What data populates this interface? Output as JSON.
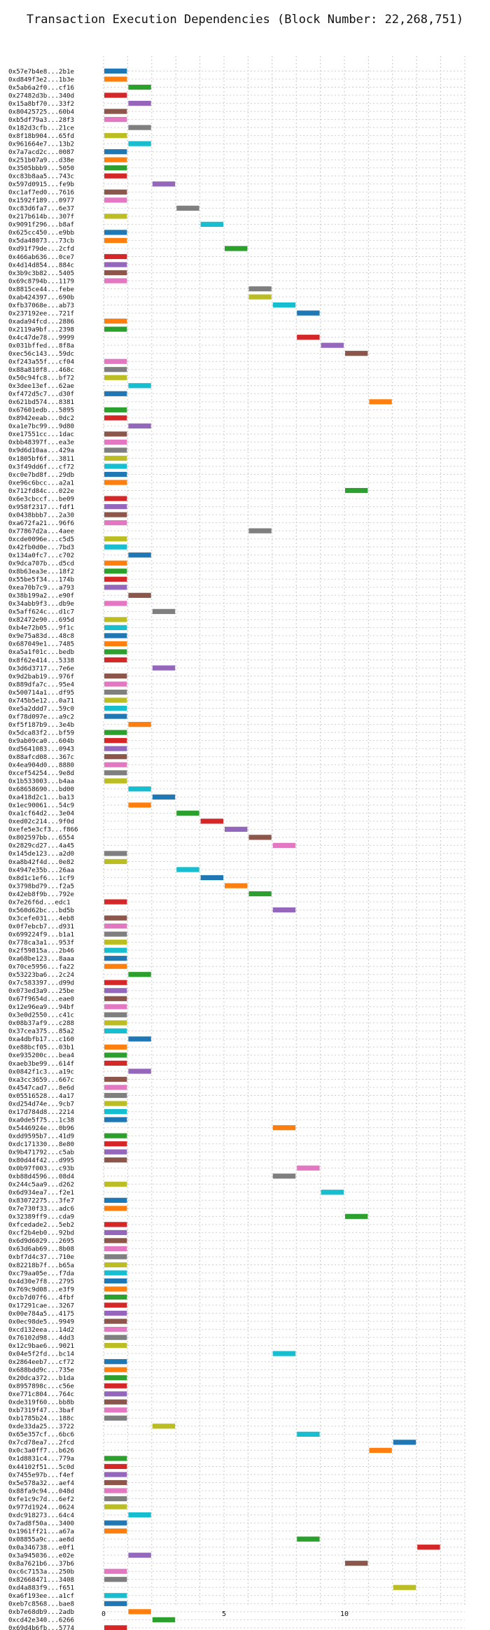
{
  "chart_data": {
    "type": "bar",
    "orientation": "horizontal-gantt",
    "title": "Transaction Execution Dependencies (Block Number: 22,268,751)",
    "xlabel": "",
    "ylabel": "",
    "xlim": [
      0,
      15
    ],
    "xticks": [
      0,
      5,
      10
    ],
    "grid": true,
    "palette": [
      "#1f77b4",
      "#ff7f0e",
      "#2ca02c",
      "#d62728",
      "#9467bd",
      "#8c564b",
      "#e377c2",
      "#7f7f7f",
      "#bcbd22",
      "#17becf"
    ],
    "transactions": [
      {
        "label": "0x57e7b4e8...2b1e",
        "start": 0,
        "end": 1
      },
      {
        "label": "0xd849f3e2...1b3e",
        "start": 0,
        "end": 1
      },
      {
        "label": "0x5ab6a2f0...cf16",
        "start": 1,
        "end": 2
      },
      {
        "label": "0x27482d3b...340d",
        "start": 0,
        "end": 1
      },
      {
        "label": "0x15a8bf70...33f2",
        "start": 1,
        "end": 2
      },
      {
        "label": "0x80425725...60b4",
        "start": 0,
        "end": 1
      },
      {
        "label": "0xb5df79a3...28f3",
        "start": 0,
        "end": 1
      },
      {
        "label": "0x182d3cfb...21ce",
        "start": 1,
        "end": 2
      },
      {
        "label": "0x8f18b904...65fd",
        "start": 0,
        "end": 1
      },
      {
        "label": "0x961664e7...13b2",
        "start": 1,
        "end": 2
      },
      {
        "label": "0x7a7acd2c...0087",
        "start": 0,
        "end": 1
      },
      {
        "label": "0x251b07a9...d38e",
        "start": 0,
        "end": 1
      },
      {
        "label": "0x3505bbb9...5050",
        "start": 0,
        "end": 1
      },
      {
        "label": "0xc83b8aa5...743c",
        "start": 0,
        "end": 1
      },
      {
        "label": "0x597d0915...fe9b",
        "start": 2,
        "end": 3
      },
      {
        "label": "0xc1af7ed0...7616",
        "start": 0,
        "end": 1
      },
      {
        "label": "0x1592f189...0977",
        "start": 0,
        "end": 1
      },
      {
        "label": "0xc83d6fa7...6e37",
        "start": 3,
        "end": 4
      },
      {
        "label": "0x217b614b...307f",
        "start": 0,
        "end": 1
      },
      {
        "label": "0x9091f296...b8af",
        "start": 4,
        "end": 5
      },
      {
        "label": "0x625cc450...e9bb",
        "start": 0,
        "end": 1
      },
      {
        "label": "0x5da48073...73cb",
        "start": 0,
        "end": 1
      },
      {
        "label": "0xd91f79de...2cfd",
        "start": 5,
        "end": 6
      },
      {
        "label": "0x466ab636...0ce7",
        "start": 0,
        "end": 1
      },
      {
        "label": "0x4d14d854...884c",
        "start": 0,
        "end": 1
      },
      {
        "label": "0x3b9c3b82...5405",
        "start": 0,
        "end": 1
      },
      {
        "label": "0x69c8794b...1179",
        "start": 0,
        "end": 1
      },
      {
        "label": "0x8815ce44...febe",
        "start": 6,
        "end": 7
      },
      {
        "label": "0xab424397...690b",
        "start": 6,
        "end": 7
      },
      {
        "label": "0xfb37068e...ab73",
        "start": 7,
        "end": 8
      },
      {
        "label": "0x237192ee...721f",
        "start": 8,
        "end": 9
      },
      {
        "label": "0xada94fcd...2886",
        "start": 0,
        "end": 1
      },
      {
        "label": "0x2119a9bf...2398",
        "start": 0,
        "end": 1
      },
      {
        "label": "0x4c47de78...9999",
        "start": 8,
        "end": 9
      },
      {
        "label": "0x031bffed...8f8a",
        "start": 9,
        "end": 10
      },
      {
        "label": "0xec56c143...59dc",
        "start": 10,
        "end": 11
      },
      {
        "label": "0xf243a55f...cf04",
        "start": 0,
        "end": 1
      },
      {
        "label": "0x88a810f8...468c",
        "start": 0,
        "end": 1
      },
      {
        "label": "0x50c94fc8...bf72",
        "start": 0,
        "end": 1
      },
      {
        "label": "0x3dee13ef...62ae",
        "start": 1,
        "end": 2
      },
      {
        "label": "0xf472d5c7...d30f",
        "start": 0,
        "end": 1
      },
      {
        "label": "0x621bd574...8381",
        "start": 11,
        "end": 12
      },
      {
        "label": "0x67601edb...5895",
        "start": 0,
        "end": 1
      },
      {
        "label": "0x8942eeab...0dc2",
        "start": 0,
        "end": 1
      },
      {
        "label": "0xa1e7bc99...9d80",
        "start": 1,
        "end": 2
      },
      {
        "label": "0xe17551cc...1dac",
        "start": 0,
        "end": 1
      },
      {
        "label": "0xbb48397f...ea3e",
        "start": 0,
        "end": 1
      },
      {
        "label": "0x9d6d10aa...429a",
        "start": 0,
        "end": 1
      },
      {
        "label": "0x1805bf6f...3811",
        "start": 0,
        "end": 1
      },
      {
        "label": "0x3f49dd6f...cf72",
        "start": 0,
        "end": 1
      },
      {
        "label": "0xc0e7bd8f...29db",
        "start": 0,
        "end": 1
      },
      {
        "label": "0xe96c6bcc...a2a1",
        "start": 0,
        "end": 1
      },
      {
        "label": "0x712fd84c...022e",
        "start": 10,
        "end": 11
      },
      {
        "label": "0x6e3cbccf...be09",
        "start": 0,
        "end": 1
      },
      {
        "label": "0x958f2317...fdf1",
        "start": 0,
        "end": 1
      },
      {
        "label": "0x0438bbb7...2a30",
        "start": 0,
        "end": 1
      },
      {
        "label": "0xa672fa21...96f6",
        "start": 0,
        "end": 1
      },
      {
        "label": "0x77867d2a...4aee",
        "start": 6,
        "end": 7
      },
      {
        "label": "0xcde0096e...c5d5",
        "start": 0,
        "end": 1
      },
      {
        "label": "0x42fb0d0e...7bd3",
        "start": 0,
        "end": 1
      },
      {
        "label": "0x134a0fc7...c702",
        "start": 1,
        "end": 2
      },
      {
        "label": "0x9dca707b...d5cd",
        "start": 0,
        "end": 1
      },
      {
        "label": "0x8b63ea3e...18f2",
        "start": 0,
        "end": 1
      },
      {
        "label": "0x55be5f34...174b",
        "start": 0,
        "end": 1
      },
      {
        "label": "0xea70b7c9...a793",
        "start": 0,
        "end": 1
      },
      {
        "label": "0x38b199a2...e90f",
        "start": 1,
        "end": 2
      },
      {
        "label": "0x34abb9f3...db9e",
        "start": 0,
        "end": 1
      },
      {
        "label": "0x5aff624c...d1c7",
        "start": 2,
        "end": 3
      },
      {
        "label": "0x82472e90...695d",
        "start": 0,
        "end": 1
      },
      {
        "label": "0xb4e72b05...9f1c",
        "start": 0,
        "end": 1
      },
      {
        "label": "0x9e75a83d...48c8",
        "start": 0,
        "end": 1
      },
      {
        "label": "0x687049e1...7485",
        "start": 0,
        "end": 1
      },
      {
        "label": "0xa5a1f01c...bedb",
        "start": 0,
        "end": 1
      },
      {
        "label": "0x8f62e414...5338",
        "start": 0,
        "end": 1
      },
      {
        "label": "0x3d6d3717...7e6e",
        "start": 2,
        "end": 3
      },
      {
        "label": "0x9d2bab19...976f",
        "start": 0,
        "end": 1
      },
      {
        "label": "0x889dfa7c...95e4",
        "start": 0,
        "end": 1
      },
      {
        "label": "0x500714a1...df95",
        "start": 0,
        "end": 1
      },
      {
        "label": "0x745b5e12...0a71",
        "start": 0,
        "end": 1
      },
      {
        "label": "0xe5a2ddd7...59c0",
        "start": 0,
        "end": 1
      },
      {
        "label": "0xf78d097e...a9c2",
        "start": 0,
        "end": 1
      },
      {
        "label": "0xf5f187b9...3e4b",
        "start": 1,
        "end": 2
      },
      {
        "label": "0x5dca83f2...bf59",
        "start": 0,
        "end": 1
      },
      {
        "label": "0x9ab09ca0...604b",
        "start": 0,
        "end": 1
      },
      {
        "label": "0xd5641083...0943",
        "start": 0,
        "end": 1
      },
      {
        "label": "0x88afcd08...367c",
        "start": 0,
        "end": 1
      },
      {
        "label": "0x4ea904d0...8880",
        "start": 0,
        "end": 1
      },
      {
        "label": "0xcef54254...9e8d",
        "start": 0,
        "end": 1
      },
      {
        "label": "0x1b533003...b4aa",
        "start": 0,
        "end": 1
      },
      {
        "label": "0x68658690...bd00",
        "start": 1,
        "end": 2
      },
      {
        "label": "0xa418d2c1...ba13",
        "start": 2,
        "end": 3
      },
      {
        "label": "0x1ec90061...54c9",
        "start": 1,
        "end": 2
      },
      {
        "label": "0xa1cf64d2...3e04",
        "start": 3,
        "end": 4
      },
      {
        "label": "0xed02c214...9f0d",
        "start": 4,
        "end": 5
      },
      {
        "label": "0xefe5e3cf3...f866",
        "start": 5,
        "end": 6
      },
      {
        "label": "0x802597bb...6554",
        "start": 6,
        "end": 7
      },
      {
        "label": "0x2829cd27...4a45",
        "start": 7,
        "end": 8
      },
      {
        "label": "0x145de123...a2d0",
        "start": 0,
        "end": 1
      },
      {
        "label": "0xa8b42f4d...0e82",
        "start": 0,
        "end": 1
      },
      {
        "label": "0x4947e35b...26aa",
        "start": 3,
        "end": 4
      },
      {
        "label": "0x8d1c1ef6...1cf9",
        "start": 4,
        "end": 5
      },
      {
        "label": "0x3798bd79...f2a5",
        "start": 5,
        "end": 6
      },
      {
        "label": "0x42eb8f9b...792e",
        "start": 6,
        "end": 7
      },
      {
        "label": "0x7e26f6d...edc1",
        "start": 0,
        "end": 1
      },
      {
        "label": "0x560d62bc...bd5b",
        "start": 7,
        "end": 8
      },
      {
        "label": "0x3cefe031...4eb8",
        "start": 0,
        "end": 1
      },
      {
        "label": "0x0f7ebcb7...d931",
        "start": 0,
        "end": 1
      },
      {
        "label": "0x699224f9...b1a1",
        "start": 0,
        "end": 1
      },
      {
        "label": "0x778ca3a1...953f",
        "start": 0,
        "end": 1
      },
      {
        "label": "0x2f59815a...2b46",
        "start": 0,
        "end": 1
      },
      {
        "label": "0xa68be123...8aaa",
        "start": 0,
        "end": 1
      },
      {
        "label": "0x70ce5956...fa22",
        "start": 0,
        "end": 1
      },
      {
        "label": "0x53223ba6...2c24",
        "start": 1,
        "end": 2
      },
      {
        "label": "0x7c583397...d99d",
        "start": 0,
        "end": 1
      },
      {
        "label": "0x073ed3a9...25be",
        "start": 0,
        "end": 1
      },
      {
        "label": "0x67f9654d...eae0",
        "start": 0,
        "end": 1
      },
      {
        "label": "0x12e96ea9...94bf",
        "start": 0,
        "end": 1
      },
      {
        "label": "0x3e0d2550...c41c",
        "start": 0,
        "end": 1
      },
      {
        "label": "0x08b37af9...c288",
        "start": 0,
        "end": 1
      },
      {
        "label": "0x37cea375...85a2",
        "start": 0,
        "end": 1
      },
      {
        "label": "0xa4dbfb17...c160",
        "start": 1,
        "end": 2
      },
      {
        "label": "0xe88bcf05...03b1",
        "start": 0,
        "end": 1
      },
      {
        "label": "0xe935200c...bea4",
        "start": 0,
        "end": 1
      },
      {
        "label": "0xaeb3be99...614f",
        "start": 0,
        "end": 1
      },
      {
        "label": "0x0842f1c3...a19c",
        "start": 1,
        "end": 2
      },
      {
        "label": "0xa3cc3659...667c",
        "start": 0,
        "end": 1
      },
      {
        "label": "0x4547cad7...8e6d",
        "start": 0,
        "end": 1
      },
      {
        "label": "0x05516528...4a17",
        "start": 0,
        "end": 1
      },
      {
        "label": "0xd254d74e...9cb7",
        "start": 0,
        "end": 1
      },
      {
        "label": "0x17d784d8...2214",
        "start": 0,
        "end": 1
      },
      {
        "label": "0xa0de5f75...1c38",
        "start": 0,
        "end": 1
      },
      {
        "label": "0x5446924e...0b96",
        "start": 7,
        "end": 8
      },
      {
        "label": "0xdd9595b7...41d9",
        "start": 0,
        "end": 1
      },
      {
        "label": "0xdc171330...8e80",
        "start": 0,
        "end": 1
      },
      {
        "label": "0x9b471792...c5ab",
        "start": 0,
        "end": 1
      },
      {
        "label": "0x80d44f42...d995",
        "start": 0,
        "end": 1
      },
      {
        "label": "0x0b97f003...c93b",
        "start": 8,
        "end": 9
      },
      {
        "label": "0xb88d4596...08d4",
        "start": 7,
        "end": 8
      },
      {
        "label": "0x244c5aa9...d262",
        "start": 0,
        "end": 1
      },
      {
        "label": "0x6d934ea7...f2e1",
        "start": 9,
        "end": 10
      },
      {
        "label": "0x83072275...3fe7",
        "start": 0,
        "end": 1
      },
      {
        "label": "0x7e730f33...adc6",
        "start": 0,
        "end": 1
      },
      {
        "label": "0x32389ff9...cda9",
        "start": 10,
        "end": 11
      },
      {
        "label": "0xfcedade2...5eb2",
        "start": 0,
        "end": 1
      },
      {
        "label": "0xcf2b4eb0...92bd",
        "start": 0,
        "end": 1
      },
      {
        "label": "0x6d9d6029...2695",
        "start": 0,
        "end": 1
      },
      {
        "label": "0x63d6ab69...8b08",
        "start": 0,
        "end": 1
      },
      {
        "label": "0xbf7d4c37...710e",
        "start": 0,
        "end": 1
      },
      {
        "label": "0x82218b7f...b65a",
        "start": 0,
        "end": 1
      },
      {
        "label": "0xc79aa05e...f7da",
        "start": 0,
        "end": 1
      },
      {
        "label": "0x4d30e7f8...2795",
        "start": 0,
        "end": 1
      },
      {
        "label": "0x769c9d08...e3f9",
        "start": 0,
        "end": 1
      },
      {
        "label": "0xcb7d07f6...4fbf",
        "start": 0,
        "end": 1
      },
      {
        "label": "0x17291cae...3267",
        "start": 0,
        "end": 1
      },
      {
        "label": "0x00e784a5...4175",
        "start": 0,
        "end": 1
      },
      {
        "label": "0x0ec98de5...9949",
        "start": 0,
        "end": 1
      },
      {
        "label": "0xcd132eea...14d2",
        "start": 0,
        "end": 1
      },
      {
        "label": "0x76102d98...4dd3",
        "start": 0,
        "end": 1
      },
      {
        "label": "0x12c9bae6...9021",
        "start": 0,
        "end": 1
      },
      {
        "label": "0x04e5f2fd...bc14",
        "start": 7,
        "end": 8
      },
      {
        "label": "0x2864eeb7...cf72",
        "start": 0,
        "end": 1
      },
      {
        "label": "0x688bdd9c...735e",
        "start": 0,
        "end": 1
      },
      {
        "label": "0x20dca372...b1da",
        "start": 0,
        "end": 1
      },
      {
        "label": "0x8957898c...c56e",
        "start": 0,
        "end": 1
      },
      {
        "label": "0xe771c804...764c",
        "start": 0,
        "end": 1
      },
      {
        "label": "0xde319f60...bb8b",
        "start": 0,
        "end": 1
      },
      {
        "label": "0xb7319f47...3baf",
        "start": 0,
        "end": 1
      },
      {
        "label": "0xb1785b24...188c",
        "start": 0,
        "end": 1
      },
      {
        "label": "0xde33da25...3722",
        "start": 2,
        "end": 3
      },
      {
        "label": "0x65e357cf...6bc6",
        "start": 8,
        "end": 9
      },
      {
        "label": "0x7cd78ea7...2fcd",
        "start": 12,
        "end": 13
      },
      {
        "label": "0x0c3a0ff7...b626",
        "start": 11,
        "end": 12
      },
      {
        "label": "0x1d8831c4...779a",
        "start": 0,
        "end": 1
      },
      {
        "label": "0x44102f51...5c0d",
        "start": 0,
        "end": 1
      },
      {
        "label": "0x7455e97b...f4ef",
        "start": 0,
        "end": 1
      },
      {
        "label": "0x5e578a32...aef4",
        "start": 0,
        "end": 1
      },
      {
        "label": "0x88fa9c94...048d",
        "start": 0,
        "end": 1
      },
      {
        "label": "0xfe1c9c7d...6ef2",
        "start": 0,
        "end": 1
      },
      {
        "label": "0x977d1924...0624",
        "start": 0,
        "end": 1
      },
      {
        "label": "0xdc918273...64c4",
        "start": 1,
        "end": 2
      },
      {
        "label": "0x7ad8f50a...3400",
        "start": 0,
        "end": 1
      },
      {
        "label": "0x1961ff21...a67a",
        "start": 0,
        "end": 1
      },
      {
        "label": "0x08855a9c...ae8d",
        "start": 8,
        "end": 9
      },
      {
        "label": "0x0a346738...e0f1",
        "start": 13,
        "end": 14
      },
      {
        "label": "0x3a945036...e02e",
        "start": 1,
        "end": 2
      },
      {
        "label": "0x8a7621b6...37b6",
        "start": 10,
        "end": 11
      },
      {
        "label": "0xc6c7153a...250b",
        "start": 0,
        "end": 1
      },
      {
        "label": "0x82668471...3408",
        "start": 0,
        "end": 1
      },
      {
        "label": "0xd4a883f9...f651",
        "start": 12,
        "end": 13
      },
      {
        "label": "0xa6f193ee...a1cf",
        "start": 0,
        "end": 1
      },
      {
        "label": "0xeb7c8568...bae8",
        "start": 0,
        "end": 1
      },
      {
        "label": "0xb7e68db9...2adb",
        "start": 1,
        "end": 2
      },
      {
        "label": "0xcd42e340...6266",
        "start": 2,
        "end": 3
      },
      {
        "label": "0x69d4b6fb...5774",
        "start": 0,
        "end": 1
      }
    ]
  }
}
